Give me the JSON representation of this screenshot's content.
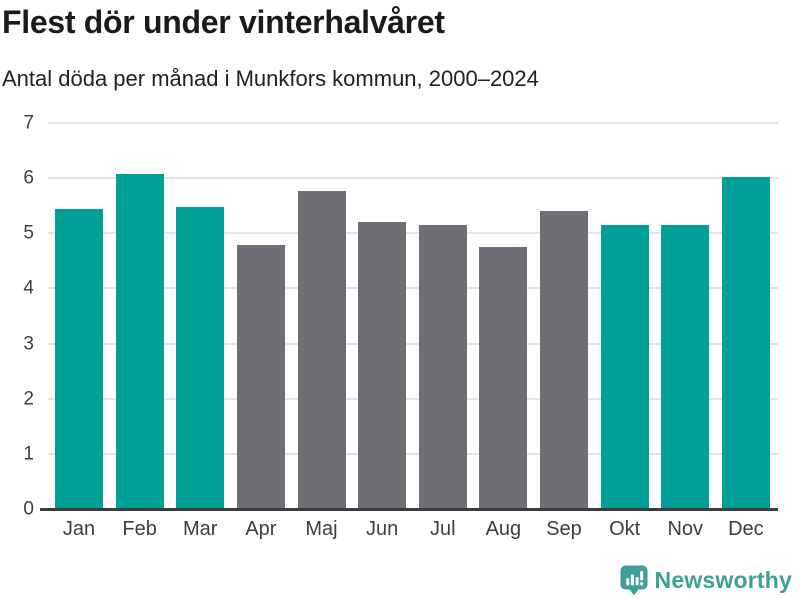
{
  "title": "Flest dör under vinterhalvåret",
  "subtitle": "Antal döda per månad i Munkfors kommun, 2000–2024",
  "footer": {
    "brand": "Newsworthy",
    "logo_icon": "newsworthy-speech-bubble-bar-chart-icon"
  },
  "colors": {
    "winter_bar": "#00a099",
    "summer_bar": "#6e6e74",
    "gridline": "#e4e4e4",
    "axis_line": "#3c3c3c",
    "title_text": "#1a1a1a",
    "tick_text": "#3e3e3e",
    "brand_teal": "#3f9e98"
  },
  "chart_data": {
    "type": "bar",
    "title": "Flest dör under vinterhalvåret",
    "subtitle": "Antal döda per månad i Munkfors kommun, 2000–2024",
    "categories": [
      "Jan",
      "Feb",
      "Mar",
      "Apr",
      "Maj",
      "Jun",
      "Jul",
      "Aug",
      "Sep",
      "Okt",
      "Nov",
      "Dec"
    ],
    "values": [
      5.44,
      6.07,
      5.48,
      4.79,
      5.76,
      5.21,
      5.15,
      4.76,
      5.41,
      5.15,
      5.15,
      6.03
    ],
    "bar_colors": [
      "winter",
      "winter",
      "winter",
      "summer",
      "summer",
      "summer",
      "summer",
      "summer",
      "summer",
      "winter",
      "winter",
      "winter"
    ],
    "xlabel": "",
    "ylabel": "",
    "ylim": [
      0,
      7
    ],
    "yticks": [
      0,
      1,
      2,
      3,
      4,
      5,
      6,
      7
    ],
    "grid": true,
    "legend": false
  }
}
